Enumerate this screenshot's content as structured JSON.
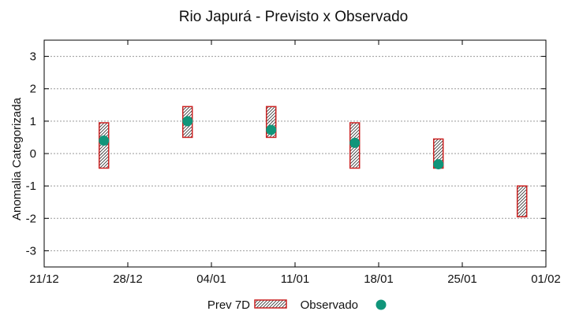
{
  "chart_data": {
    "type": "scatter",
    "title": "Rio Japurá - Previsto x Observado",
    "xlabel": "",
    "ylabel": "Anomalia Categorizada",
    "xlim": [
      0,
      42
    ],
    "ylim": [
      -3.5,
      3.5
    ],
    "grid": true,
    "x_ticks": [
      {
        "x": 0,
        "label": "21/12"
      },
      {
        "x": 7,
        "label": "28/12"
      },
      {
        "x": 14,
        "label": "04/01"
      },
      {
        "x": 21,
        "label": "11/01"
      },
      {
        "x": 28,
        "label": "18/01"
      },
      {
        "x": 35,
        "label": "25/01"
      },
      {
        "x": 42,
        "label": "01/02"
      }
    ],
    "y_ticks": [
      -3,
      -2,
      -1,
      0,
      1,
      2,
      3
    ],
    "y_tick_labels": [
      "-3",
      "-2",
      "-1",
      "0",
      "1",
      "2",
      "3"
    ],
    "series": [
      {
        "name": "Prev 7D",
        "kind": "range-box",
        "color": "#cc2222",
        "points": [
          {
            "x": 5,
            "low": -0.45,
            "high": 0.95
          },
          {
            "x": 12,
            "low": 0.5,
            "high": 1.45
          },
          {
            "x": 19,
            "low": 0.5,
            "high": 1.45
          },
          {
            "x": 26,
            "low": -0.45,
            "high": 0.95
          },
          {
            "x": 33,
            "low": -0.45,
            "high": 0.45
          },
          {
            "x": 40,
            "low": -1.95,
            "high": -1.0
          }
        ]
      },
      {
        "name": "Observado",
        "kind": "point",
        "color": "#10957a",
        "points": [
          {
            "x": 5,
            "y": 0.4
          },
          {
            "x": 12,
            "y": 1.0
          },
          {
            "x": 19,
            "y": 0.73
          },
          {
            "x": 26,
            "y": 0.33
          },
          {
            "x": 33,
            "y": -0.33
          }
        ]
      }
    ],
    "legend": {
      "position": "bottom",
      "entries": [
        "Prev 7D",
        "Observado"
      ]
    }
  }
}
